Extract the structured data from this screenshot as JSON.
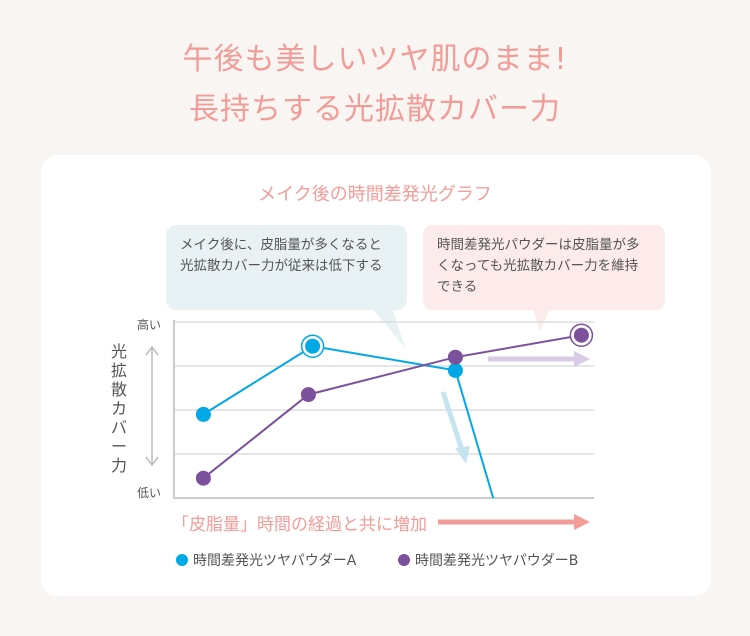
{
  "headline": {
    "line1": "午後も美しいツヤ肌のまま!",
    "line2": "長持ちする光拡散カバー力"
  },
  "callouts": [
    {
      "text": "メイク後に、皮脂量が多くなると光拡散カバー力が従来は低下する"
    },
    {
      "text": "時間差発光パウダーは皮脂量が多くなっても光拡散カバー力を維持できる"
    }
  ],
  "colors": {
    "series_a": "#00a8e6",
    "series_b": "#7b519e",
    "accent": "#f29c98"
  },
  "chart_data": {
    "type": "line",
    "title": "メイク後の時間差発光グラフ",
    "ylabel": "光拡散カバー力",
    "xlabel": "「皮脂量」時間の経過と共に増加",
    "y_tick_labels": {
      "high": "高い",
      "low": "低い"
    },
    "ylim": [
      0,
      4
    ],
    "xlim": [
      0,
      10
    ],
    "grid": true,
    "legend_position": "bottom",
    "series": [
      {
        "name": "時間差発光ツヤパウダーA",
        "x": [
          0.7,
          3.3,
          6.7,
          7.6
        ],
        "y": [
          1.9,
          3.45,
          2.9,
          0
        ],
        "highlight_index": 1
      },
      {
        "name": "時間差発光ツヤパウダーB",
        "x": [
          0.7,
          3.2,
          6.7,
          9.7
        ],
        "y": [
          0.45,
          2.35,
          3.2,
          3.7
        ],
        "highlight_index": 3
      }
    ]
  }
}
